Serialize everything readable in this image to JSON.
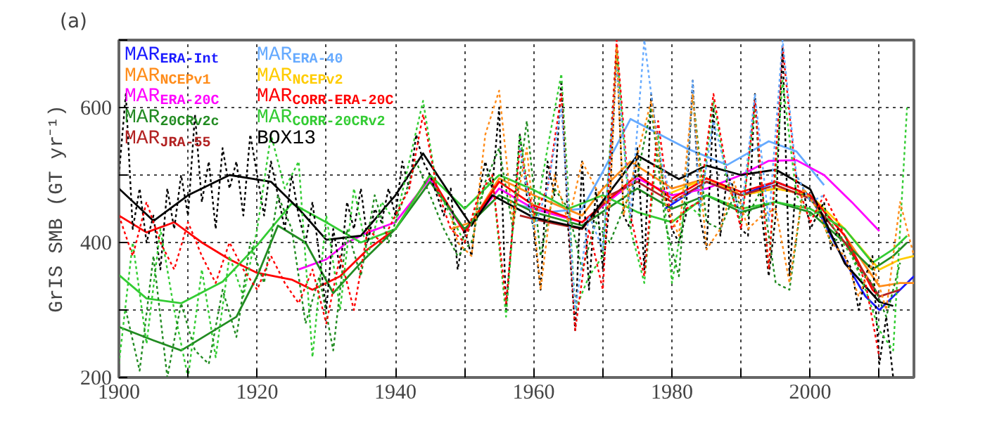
{
  "chart_data": {
    "type": "line",
    "title": "(a)",
    "ylabel": "GrIS SMB (GT yr⁻¹)",
    "xlim": [
      1900,
      2015
    ],
    "ylim": [
      200,
      700
    ],
    "xticks": [
      1900,
      {
        "value": 1910,
        "label": null
      },
      1920,
      {
        "value": 1930,
        "label": null
      },
      1940,
      {
        "value": 1950,
        "label": null
      },
      1960,
      {
        "value": 1970,
        "label": null
      },
      1980,
      {
        "value": 1990,
        "label": null
      },
      2000,
      {
        "value": 2010,
        "label": null
      }
    ],
    "yticks": [
      200,
      {
        "value": 300,
        "label": null
      },
      400,
      {
        "value": 500,
        "label": null
      },
      600,
      {
        "value": 700,
        "label": null
      }
    ],
    "grid": true,
    "legend": "top left",
    "series": [
      {
        "name": "MAR$_{ERA-Int}$",
        "color": "#1a1aff",
        "line_style": "solid",
        "x": [
          1979,
          1985,
          1990,
          1995,
          2000,
          2004,
          2008,
          2010,
          2013,
          2015
        ],
        "values": [
          450,
          490,
          470,
          490,
          470,
          390,
          320,
          300,
          330,
          350
        ]
      },
      {
        "name": "MAR$_{ERA-40}$",
        "color": "#66aaff",
        "line_style": "solid",
        "x": [
          1958,
          1962,
          1967,
          1970,
          1974,
          1979,
          1982,
          1988,
          1994,
          1998,
          2002
        ],
        "values": [
          455,
          445,
          450,
          505,
          583,
          556,
          540,
          515,
          550,
          535,
          485
        ]
      },
      {
        "name": "MAR$_{NCEPv1}$",
        "color": "#ff8c1a",
        "line_style": "solid",
        "x": [
          1948,
          1951,
          1955,
          1960,
          1967,
          1970,
          1974,
          1980,
          1985,
          1990,
          1995,
          2000,
          2005,
          2010,
          2013,
          2015
        ],
        "values": [
          420,
          430,
          495,
          470,
          440,
          480,
          520,
          480,
          495,
          470,
          480,
          470,
          410,
          335,
          340,
          340
        ]
      },
      {
        "name": "MAR$_{NCEPv2}$",
        "color": "#ffcc00",
        "line_style": "solid",
        "x": [
          1979,
          1985,
          1990,
          1995,
          2000,
          2005,
          2010,
          2013,
          2015
        ],
        "values": [
          470,
          495,
          470,
          480,
          470,
          420,
          360,
          375,
          380
        ]
      },
      {
        "name": "MAR$_{ERA-20C}$",
        "color": "#ff00ff",
        "line_style": "solid",
        "x": [
          1926,
          1930,
          1933,
          1936,
          1940,
          1945,
          1950,
          1955,
          1960,
          1967,
          1975,
          1980,
          1985,
          1990,
          1994,
          1998,
          2002,
          2006,
          2010
        ],
        "values": [
          360,
          375,
          400,
          415,
          430,
          495,
          415,
          480,
          450,
          430,
          495,
          470,
          480,
          500,
          521,
          522,
          500,
          460,
          417
        ]
      },
      {
        "name": "MAR$_{CORR-ERA-20C}$",
        "color": "#ff0000",
        "line_style": "solid",
        "x": [
          1900,
          1904,
          1908,
          1912,
          1916,
          1920,
          1925,
          1928,
          1932,
          1936,
          1940,
          1945,
          1950,
          1955,
          1960,
          1967,
          1975,
          1980,
          1985,
          1990,
          1995,
          2000,
          2005,
          2009,
          2010
        ],
        "values": [
          440,
          415,
          430,
          400,
          375,
          355,
          345,
          330,
          350,
          390,
          420,
          500,
          415,
          490,
          455,
          430,
          500,
          465,
          495,
          475,
          490,
          470,
          410,
          330,
          320
        ]
      },
      {
        "name": "MAR$_{20CRv2c}$",
        "color": "#228b22",
        "line_style": "solid",
        "x": [
          1900,
          1905,
          1909,
          1913,
          1917,
          1920,
          1923,
          1927,
          1931,
          1935,
          1940,
          1945,
          1950,
          1955,
          1960,
          1967,
          1975,
          1980,
          1985,
          1990,
          1995,
          2000,
          2005,
          2009,
          2012,
          2014
        ],
        "values": [
          275,
          255,
          240,
          265,
          290,
          350,
          425,
          400,
          325,
          370,
          420,
          490,
          420,
          470,
          445,
          425,
          480,
          450,
          470,
          445,
          460,
          445,
          400,
          360,
          380,
          400
        ]
      },
      {
        "name": "MAR$_{CORR-20CRv2}$",
        "color": "#33cc33",
        "line_style": "solid",
        "x": [
          1900,
          1904,
          1909,
          1915,
          1920,
          1925,
          1930,
          1935,
          1940,
          1945,
          1950,
          1955,
          1960,
          1965,
          1970,
          1975,
          1980,
          1985,
          1990,
          1995,
          2000,
          2005,
          2009,
          2012,
          2014
        ],
        "values": [
          352,
          317,
          310,
          342,
          396,
          458,
          430,
          400,
          420,
          500,
          450,
          500,
          478,
          450,
          470,
          445,
          430,
          470,
          450,
          460,
          450,
          420,
          370,
          390,
          410
        ]
      },
      {
        "name": "MAR$_{JRA-55}$",
        "color": "#b22222",
        "line_style": "solid",
        "x": [
          1958,
          1962,
          1967,
          1971,
          1975,
          1980,
          1985,
          1990,
          1995,
          2000,
          2005,
          2010,
          2013
        ],
        "values": [
          440,
          430,
          420,
          470,
          490,
          460,
          490,
          470,
          485,
          465,
          400,
          320,
          330
        ]
      },
      {
        "name": "BOX13",
        "color": "#000000",
        "line_style": "solid",
        "x": [
          1900,
          1905,
          1910,
          1916,
          1922,
          1926,
          1930,
          1935,
          1940,
          1944,
          1948,
          1951,
          1954,
          1960,
          1967,
          1975,
          1981,
          1985,
          1990,
          1995,
          2000,
          2005,
          2010,
          2012
        ],
        "values": [
          480,
          432,
          470,
          500,
          490,
          450,
          404,
          410,
          470,
          532,
          470,
          425,
          470,
          437,
          421,
          529,
          494,
          514,
          500,
          508,
          479,
          369,
          312,
          306
        ]
      },
      {
        "color": "#000000",
        "line_style": "dotted",
        "x": [
          1900,
          1901,
          1902,
          1903,
          1904,
          1905,
          1906,
          1907,
          1908,
          1909,
          1910,
          1911,
          1912,
          1913,
          1914,
          1915,
          1916,
          1917,
          1918,
          1919,
          1920,
          1921,
          1922,
          1923,
          1924,
          1925,
          1926,
          1927,
          1928,
          1929,
          1930,
          1931,
          1932,
          1933,
          1934,
          1935,
          1936,
          1937,
          1938,
          1939,
          1940,
          1941,
          1942,
          1943,
          1944,
          1945,
          1946,
          1947,
          1948,
          1949,
          1950,
          1951,
          1952,
          1953,
          1954,
          1955,
          1956,
          1957,
          1958,
          1959,
          1960,
          1961,
          1962,
          1963,
          1964,
          1965,
          1966,
          1967,
          1968,
          1969,
          1970,
          1971,
          1972,
          1973,
          1974,
          1975,
          1976,
          1977,
          1978,
          1979,
          1980,
          1981,
          1982,
          1983,
          1984,
          1985,
          1986,
          1987,
          1988,
          1989,
          1990,
          1991,
          1992,
          1993,
          1994,
          1995,
          1996,
          1997,
          1998,
          1999,
          2000,
          2001,
          2002,
          2003,
          2004,
          2005,
          2006,
          2007,
          2008,
          2009,
          2010,
          2011,
          2012
        ],
        "values": [
          500,
          620,
          420,
          480,
          400,
          440,
          360,
          480,
          420,
          500,
          440,
          590,
          460,
          520,
          420,
          540,
          480,
          520,
          440,
          560,
          500,
          440,
          520,
          470,
          420,
          500,
          440,
          400,
          460,
          380,
          300,
          420,
          360,
          460,
          420,
          480,
          400,
          450,
          430,
          480,
          440,
          520,
          480,
          560,
          520,
          500,
          470,
          440,
          480,
          360,
          420,
          380,
          470,
          520,
          480,
          600,
          300,
          430,
          560,
          470,
          420,
          330,
          520,
          470,
          640,
          420,
          270,
          520,
          330,
          480,
          360,
          460,
          690,
          440,
          420,
          540,
          360,
          620,
          540,
          470,
          420,
          400,
          440,
          640,
          440,
          390,
          600,
          410,
          500,
          480,
          420,
          410,
          620,
          440,
          350,
          440,
          690,
          350,
          500,
          480,
          420,
          440,
          460,
          390,
          420,
          380,
          360,
          300,
          350,
          380,
          220,
          290,
          200
        ]
      },
      {
        "color": "#33cc33",
        "line_style": "dotted",
        "x": [
          1900,
          1902,
          1904,
          1906,
          1908,
          1910,
          1912,
          1914,
          1916,
          1918,
          1920,
          1922,
          1924,
          1926,
          1928,
          1930,
          1932,
          1934,
          1936,
          1938,
          1940,
          1942,
          1944,
          1946,
          1948,
          1950,
          1952,
          1954,
          1956,
          1958,
          1960,
          1962,
          1964,
          1966,
          1968,
          1970,
          1972,
          1974,
          1976,
          1978,
          1980,
          1982,
          1984,
          1986,
          1988,
          1990,
          1992,
          1994,
          1996,
          1998,
          2000,
          2002,
          2004,
          2006,
          2008,
          2010,
          2012,
          2014
        ],
        "values": [
          220,
          400,
          250,
          420,
          300,
          200,
          360,
          230,
          380,
          320,
          420,
          560,
          480,
          520,
          230,
          440,
          300,
          480,
          380,
          460,
          430,
          520,
          610,
          480,
          440,
          400,
          460,
          500,
          290,
          560,
          420,
          540,
          650,
          300,
          350,
          380,
          690,
          420,
          340,
          560,
          340,
          460,
          440,
          610,
          490,
          430,
          600,
          360,
          640,
          470,
          440,
          450,
          410,
          380,
          330,
          270,
          240,
          600
        ]
      },
      {
        "color": "#228b22",
        "line_style": "dotted",
        "x": [
          1901,
          1903,
          1905,
          1907,
          1909,
          1911,
          1913,
          1915,
          1917,
          1919,
          1921,
          1923,
          1925,
          1927,
          1929,
          1931,
          1933,
          1935,
          1937,
          1939,
          1941,
          1943,
          1945,
          1947,
          1949,
          1951,
          1953,
          1955,
          1957,
          1959,
          1961,
          1963,
          1965,
          1967,
          1969,
          1971,
          1973,
          1975,
          1977,
          1979,
          1981,
          1983,
          1985,
          1987,
          1989,
          1991,
          1993,
          1995,
          1997,
          1999,
          2001,
          2003,
          2005,
          2007,
          2009,
          2011,
          2013
        ],
        "values": [
          300,
          210,
          380,
          200,
          310,
          240,
          220,
          330,
          260,
          400,
          340,
          470,
          420,
          280,
          350,
          240,
          420,
          350,
          470,
          400,
          460,
          520,
          470,
          420,
          380,
          400,
          490,
          540,
          420,
          580,
          380,
          480,
          450,
          360,
          430,
          400,
          450,
          500,
          600,
          430,
          350,
          620,
          430,
          420,
          470,
          440,
          480,
          340,
          330,
          480,
          450,
          400,
          410,
          360,
          340,
          290,
          370
        ]
      },
      {
        "color": "#ff0000",
        "line_style": "dotted",
        "x": [
          1900,
          1902,
          1904,
          1906,
          1908,
          1910,
          1912,
          1914,
          1916,
          1918,
          1920,
          1922,
          1924,
          1926,
          1928,
          1930,
          1932,
          1934,
          1936,
          1938,
          1940,
          1942,
          1944,
          1946,
          1948,
          1950,
          1952,
          1954,
          1956,
          1958,
          1960,
          1962,
          1964,
          1966,
          1968,
          1970,
          1972,
          1974,
          1976,
          1978,
          1980,
          1982,
          1984,
          1986,
          1988,
          1990,
          1992,
          1994,
          1996,
          1998,
          2000,
          2002,
          2004,
          2006,
          2008,
          2010
        ],
        "values": [
          440,
          380,
          460,
          400,
          360,
          430,
          380,
          340,
          400,
          360,
          330,
          380,
          340,
          310,
          360,
          280,
          380,
          300,
          420,
          400,
          440,
          480,
          590,
          480,
          420,
          400,
          470,
          500,
          310,
          540,
          440,
          480,
          620,
          270,
          420,
          330,
          700,
          440,
          350,
          580,
          420,
          450,
          460,
          620,
          500,
          420,
          610,
          360,
          690,
          490,
          430,
          470,
          430,
          390,
          340,
          230
        ]
      },
      {
        "color": "#66aaff",
        "line_style": "dotted",
        "x": [
          1958,
          1960,
          1962,
          1964,
          1966,
          1968,
          1970,
          1972,
          1974,
          1976,
          1978,
          1980,
          1982,
          1983,
          1984,
          1986,
          1988,
          1990,
          1992,
          1994,
          1996,
          1998,
          2000,
          2002
        ],
        "values": [
          540,
          420,
          480,
          600,
          300,
          440,
          390,
          660,
          440,
          700,
          540,
          460,
          470,
          640,
          450,
          580,
          500,
          440,
          620,
          430,
          700,
          500,
          460,
          470
        ]
      },
      {
        "color": "#ff8c1a",
        "line_style": "dotted",
        "x": [
          1948,
          1949,
          1951,
          1953,
          1955,
          1957,
          1959,
          1961,
          1963,
          1965,
          1967,
          1969,
          1971,
          1972,
          1973,
          1975,
          1977,
          1979,
          1981,
          1983,
          1985,
          1987,
          1989,
          1991,
          1993,
          1995,
          1997,
          1999,
          2001,
          2003,
          2005,
          2007,
          2009,
          2011,
          2013,
          2015
        ],
        "values": [
          440,
          400,
          380,
          560,
          625,
          430,
          540,
          330,
          500,
          430,
          520,
          480,
          450,
          690,
          440,
          530,
          610,
          460,
          410,
          620,
          390,
          420,
          490,
          420,
          440,
          450,
          340,
          480,
          450,
          400,
          380,
          320,
          370,
          300,
          460,
          380
        ]
      }
    ]
  }
}
